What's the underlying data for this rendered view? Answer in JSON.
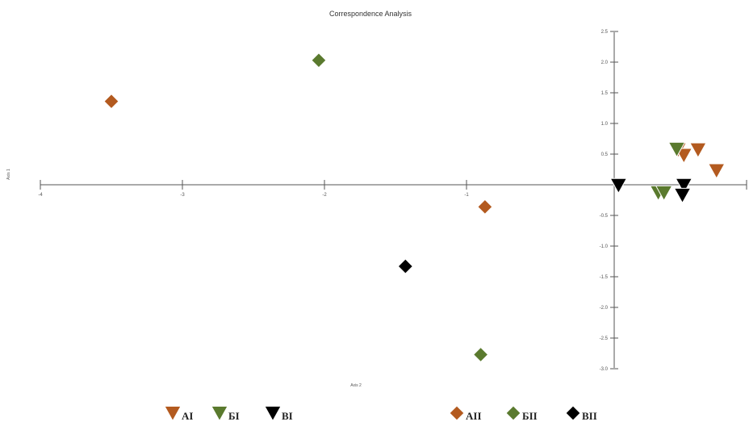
{
  "chart_data": {
    "type": "scatter",
    "title": "Correspondence Analysis",
    "xlabel": "Axis 2",
    "ylabel": "Axis 1",
    "xlim": [
      -4,
      0.9
    ],
    "ylim": [
      -3.0,
      2.5
    ],
    "x_ticks": [
      -4,
      -3,
      -2,
      -1
    ],
    "y_ticks": [
      2.5,
      2.0,
      1.5,
      1.0,
      0.5,
      -0.5,
      -1.0,
      -1.5,
      -2.0,
      -2.5,
      -3.0
    ],
    "y_tick_labels": [
      "2.5",
      "2.0",
      "1.5",
      "1.0",
      "0.5",
      "-0.5",
      "-1.0",
      "-1.5",
      "-2.0",
      "-2.5",
      "-3.0"
    ],
    "grid": false,
    "legend_position": "bottom",
    "series": [
      {
        "name": "AI",
        "marker": "triangle-down",
        "color": "#b35a1f",
        "points": [
          [
            0.49,
            0.57
          ],
          [
            0.53,
            0.48
          ],
          [
            0.63,
            0.57
          ],
          [
            0.76,
            0.23
          ]
        ]
      },
      {
        "name": "БI",
        "marker": "triangle-down",
        "color": "#5a7a2e",
        "points": [
          [
            0.48,
            0.58
          ],
          [
            0.35,
            -0.13
          ],
          [
            0.39,
            -0.13
          ]
        ]
      },
      {
        "name": "BI",
        "marker": "triangle-down",
        "color": "#000000",
        "points": [
          [
            0.07,
            -0.01
          ],
          [
            0.53,
            -0.01
          ],
          [
            0.52,
            -0.17
          ]
        ]
      },
      {
        "name": "AII",
        "marker": "diamond",
        "color": "#b35a1f",
        "points": [
          [
            -3.5,
            1.36
          ],
          [
            -0.87,
            -0.36
          ]
        ]
      },
      {
        "name": "БII",
        "marker": "diamond",
        "color": "#5a7a2e",
        "points": [
          [
            -2.04,
            2.03
          ],
          [
            -0.9,
            -2.77
          ]
        ]
      },
      {
        "name": "BII",
        "marker": "diamond",
        "color": "#000000",
        "points": [
          [
            -1.43,
            -1.33
          ]
        ]
      }
    ]
  }
}
